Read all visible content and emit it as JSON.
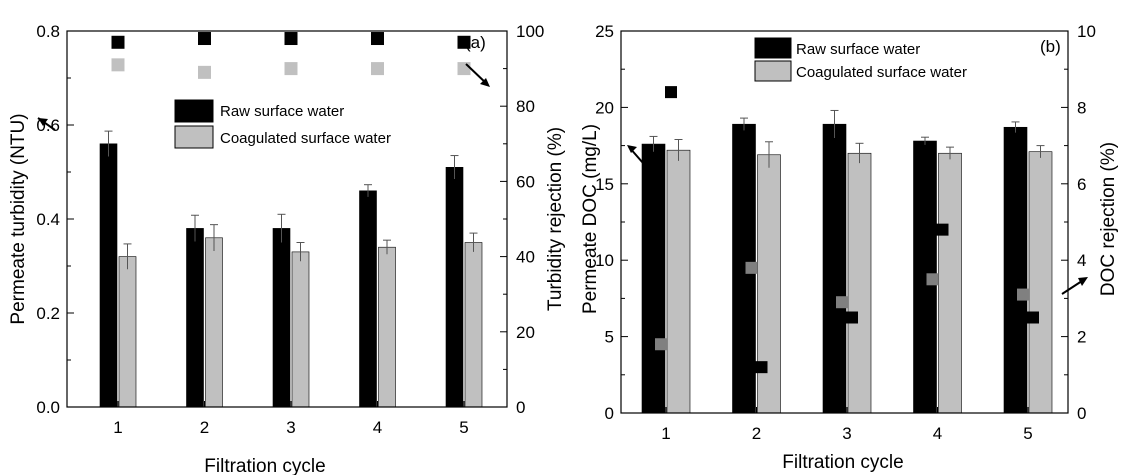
{
  "chart_data": [
    {
      "panel_label": "(a)",
      "type": "bar",
      "categories": [
        "1",
        "2",
        "3",
        "4",
        "5"
      ],
      "xlabel": "Filtration cycle",
      "ylabel": "Permeate turbidity (NTU)",
      "y2label": "Turbidity rejection (%)",
      "ylim": [
        0,
        0.8
      ],
      "yticks": [
        "0.0",
        "0.2",
        "0.4",
        "0.6",
        "0.8"
      ],
      "y2lim": [
        0,
        100
      ],
      "y2ticks": [
        "0",
        "20",
        "40",
        "60",
        "80",
        "100"
      ],
      "legend_position": "center",
      "series": [
        {
          "name": "Raw surface water",
          "color": "#000000",
          "values": [
            0.56,
            0.38,
            0.38,
            0.46,
            0.51
          ],
          "errors": [
            0.027,
            0.028,
            0.03,
            0.013,
            0.025
          ]
        },
        {
          "name": "Coagulated surface water",
          "color": "#c0c0c0",
          "values": [
            0.32,
            0.36,
            0.33,
            0.34,
            0.35
          ],
          "errors": [
            0.027,
            0.028,
            0.02,
            0.015,
            0.02
          ]
        }
      ],
      "rejection_series": [
        {
          "color": "#000000",
          "values": [
            97,
            98,
            98,
            98,
            97
          ]
        },
        {
          "color": "#c0c0c0",
          "values": [
            91,
            89,
            90,
            90,
            90
          ]
        }
      ],
      "arrows": [
        "left-axis",
        "right-axis"
      ]
    },
    {
      "panel_label": "(b)",
      "type": "bar",
      "categories": [
        "1",
        "2",
        "3",
        "4",
        "5"
      ],
      "xlabel": "Filtration cycle",
      "ylabel": "Permeate DOC (mg/L)",
      "y2label": "DOC rejection (%)",
      "ylim": [
        0,
        25
      ],
      "yticks": [
        "0",
        "5",
        "10",
        "15",
        "20",
        "25"
      ],
      "y2lim": [
        0,
        10
      ],
      "y2ticks": [
        "0",
        "2",
        "4",
        "6",
        "8",
        "10"
      ],
      "legend_position": "top-center",
      "series": [
        {
          "name": "Raw surface water",
          "color": "#000000",
          "values": [
            17.6,
            18.9,
            18.9,
            17.8,
            18.7
          ],
          "errors": [
            0.5,
            0.4,
            0.9,
            0.25,
            0.35
          ]
        },
        {
          "name": "Coagulated surface water",
          "color": "#c0c0c0",
          "values": [
            17.2,
            16.9,
            17.0,
            17.0,
            17.1
          ],
          "errors": [
            0.7,
            0.85,
            0.65,
            0.4,
            0.4
          ]
        }
      ],
      "rejection_series": [
        {
          "color": "#000000",
          "values": [
            8.4,
            1.2,
            2.5,
            4.8,
            2.5
          ]
        },
        {
          "color": "#808080",
          "values": [
            1.8,
            3.8,
            2.9,
            3.5,
            3.1
          ]
        }
      ],
      "arrows": [
        "left-axis",
        "right-axis"
      ]
    }
  ]
}
